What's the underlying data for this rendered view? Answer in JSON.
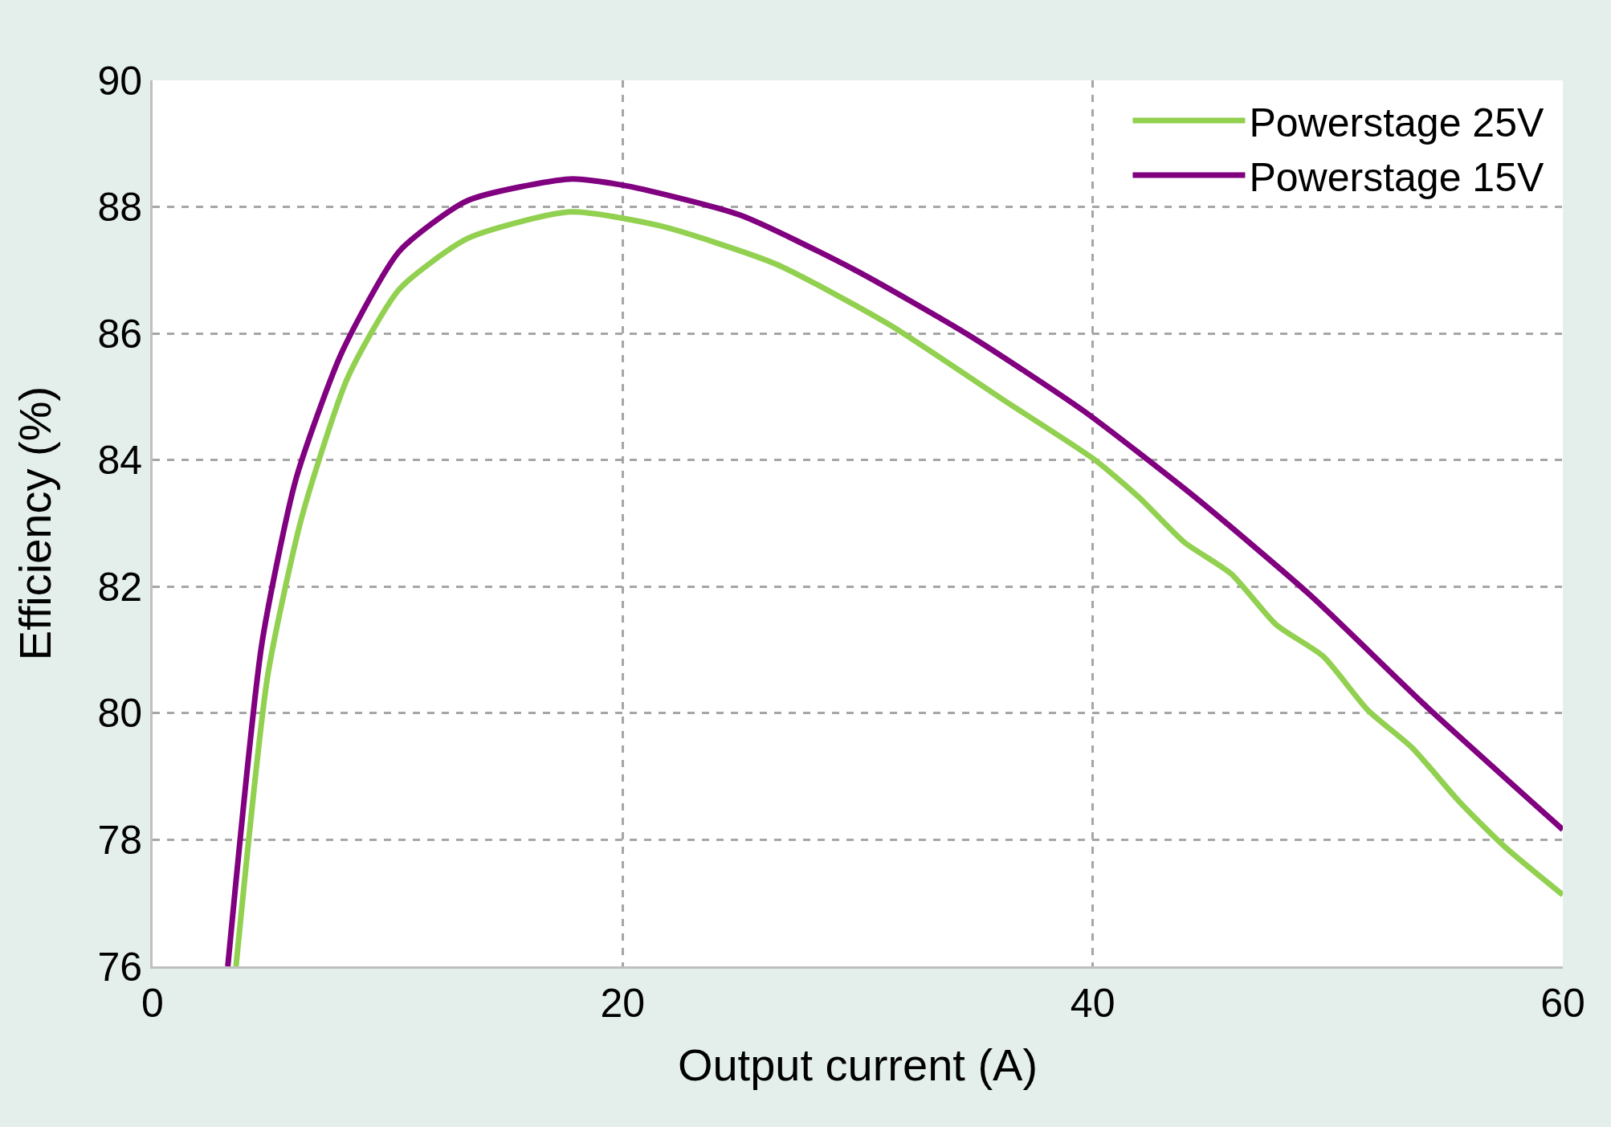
{
  "chart_data": {
    "type": "line",
    "xlabel": "Output current (A)",
    "ylabel": "Efficiency (%)",
    "xlim": [
      0,
      60
    ],
    "xticks": [
      0,
      20,
      40,
      60
    ],
    "ylim": [
      76,
      90
    ],
    "yticks": [
      76,
      78,
      80,
      82,
      84,
      86,
      88,
      90
    ],
    "grid": true,
    "legend": "top right",
    "line_style": "solid",
    "marker": "none",
    "series": [
      {
        "name": "Powerstage 25V",
        "color": "#92d050",
        "x": [
          3.55,
          4.9,
          6.35,
          8.3,
          10.5,
          13.4,
          17.75,
          21.6,
          26.5,
          31.3,
          36.2,
          40.1,
          42.0,
          43.9,
          45.9,
          47.8,
          49.8,
          51.7,
          53.6,
          55.6,
          57.5,
          60
        ],
        "values": [
          76,
          80.6,
          83.1,
          85.3,
          86.7,
          87.5,
          87.92,
          87.7,
          87.1,
          86.15,
          84.95,
          84.0,
          83.4,
          82.7,
          82.2,
          81.4,
          80.9,
          80.05,
          79.45,
          78.6,
          77.9,
          77.13
        ]
      },
      {
        "name": "Powerstage 15V",
        "color": "#800080",
        "x": [
          3.2,
          4.65,
          6.1,
          8.05,
          10.5,
          13.4,
          17.75,
          20.2,
          25.0,
          29.9,
          34.7,
          39.6,
          44.4,
          49.3,
          54.1,
          60
        ],
        "values": [
          76,
          81.1,
          83.7,
          85.7,
          87.3,
          88.1,
          88.44,
          88.33,
          87.87,
          87.0,
          85.98,
          84.78,
          83.4,
          81.85,
          80.14,
          78.16
        ]
      }
    ]
  }
}
